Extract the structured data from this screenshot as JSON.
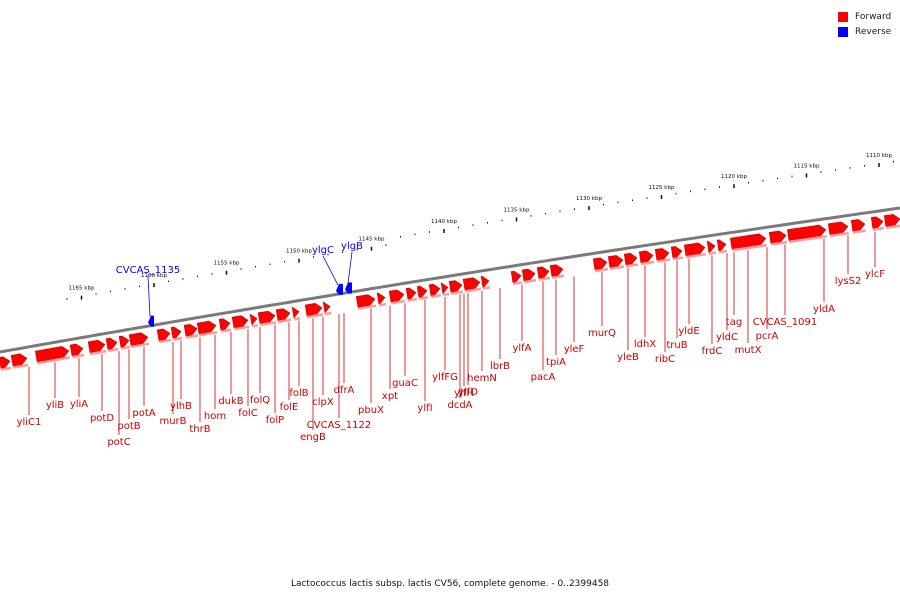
{
  "legend": {
    "forward": {
      "label": "Forward",
      "color": "#ff0000"
    },
    "reverse": {
      "label": "Reverse",
      "color": "#0000ff"
    }
  },
  "caption": "Lactococcus lactis subsp. lactis CV56, complete genome. - 0..2399458",
  "scale_unit": "kbp",
  "ruler_major_kbp": [
    1110,
    1115,
    1120,
    1125,
    1130,
    1135,
    1140,
    1145,
    1150,
    1155,
    1160,
    1165
  ],
  "gene_labels": {
    "forward": [
      "yliC1",
      "yliB",
      "yliA",
      "potD",
      "potC",
      "potB",
      "potA",
      "murB",
      "ylhB",
      "thrB",
      "hom",
      "dukB",
      "folC",
      "folQ",
      "folP",
      "folE",
      "folB",
      "engB",
      "CVCAS_1122",
      "clpX",
      "dfrA",
      "pbuX",
      "xpt",
      "guaC",
      "ylfI",
      "ylfFG",
      "ylfH",
      "dcdA",
      "ylfD",
      "hemN",
      "lbrB",
      "ylfA",
      "pacA",
      "tpiA",
      "yleF",
      "murQ",
      "yleB",
      "ldhX",
      "ribC",
      "truB",
      "yldE",
      "frdC",
      "tag",
      "yldC",
      "mutX",
      "pcrA",
      "CVCAS_1091",
      "yldA",
      "lysS2",
      "ylcF"
    ],
    "reverse": [
      "CVCAS_1135",
      "ylgC",
      "ylgB"
    ]
  }
}
